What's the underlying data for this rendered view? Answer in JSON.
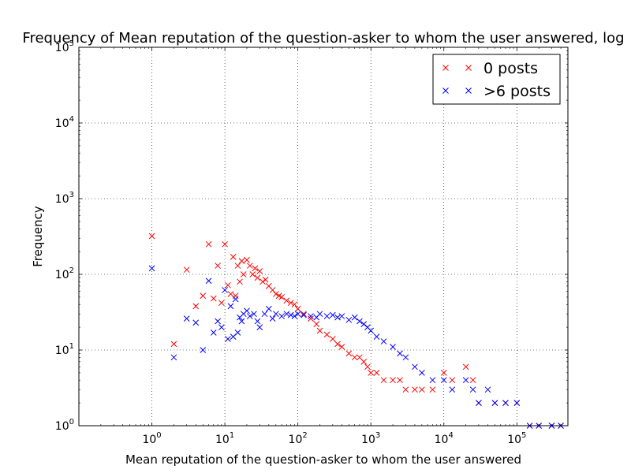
{
  "chart_data": {
    "type": "scatter",
    "title": "Frequency of Mean reputation of the question-asker to whom the user answered, log",
    "xlabel": "Mean reputation of the question-asker to whom the user answered",
    "ylabel": "Frequency",
    "xscale": "log",
    "yscale": "log",
    "xlim": [
      0.1,
      500000
    ],
    "ylim": [
      1,
      100000
    ],
    "x_ticks": [
      {
        "base": "10",
        "exp": "0",
        "value": 1
      },
      {
        "base": "10",
        "exp": "1",
        "value": 10
      },
      {
        "base": "10",
        "exp": "2",
        "value": 100
      },
      {
        "base": "10",
        "exp": "3",
        "value": 1000
      },
      {
        "base": "10",
        "exp": "4",
        "value": 10000
      },
      {
        "base": "10",
        "exp": "5",
        "value": 100000
      }
    ],
    "y_ticks": [
      {
        "base": "10",
        "exp": "0",
        "value": 1
      },
      {
        "base": "10",
        "exp": "1",
        "value": 10
      },
      {
        "base": "10",
        "exp": "2",
        "value": 100
      },
      {
        "base": "10",
        "exp": "3",
        "value": 1000
      },
      {
        "base": "10",
        "exp": "4",
        "value": 10000
      },
      {
        "base": "10",
        "exp": "5",
        "value": 100000
      }
    ],
    "grid": true,
    "legend_position": "top-right",
    "series": [
      {
        "name": "0 posts",
        "color": "#ff0000",
        "marker": "x",
        "x": [
          1,
          2,
          3,
          4,
          5,
          6,
          7,
          8,
          9,
          10,
          11,
          12,
          13,
          14,
          15,
          16,
          17,
          18,
          20,
          22,
          24,
          26,
          28,
          30,
          33,
          36,
          40,
          45,
          50,
          55,
          60,
          70,
          80,
          90,
          100,
          120,
          150,
          180,
          200,
          250,
          300,
          350,
          400,
          500,
          600,
          700,
          800,
          900,
          1000,
          1200,
          1500,
          2000,
          2500,
          3000,
          4000,
          5000,
          7000,
          10000,
          13000,
          20000,
          25000,
          30000,
          50000,
          70000,
          100000,
          150000,
          200000,
          300000,
          400000
        ],
        "y": [
          320,
          12,
          115,
          38,
          52,
          250,
          48,
          130,
          42,
          250,
          72,
          55,
          170,
          52,
          130,
          80,
          150,
          100,
          155,
          130,
          100,
          120,
          90,
          110,
          80,
          85,
          70,
          62,
          55,
          52,
          50,
          45,
          42,
          40,
          35,
          30,
          26,
          22,
          18,
          16,
          14,
          12,
          11,
          9,
          8,
          8,
          7,
          6,
          5,
          5,
          4,
          4,
          4,
          3,
          3,
          3,
          3,
          5,
          4,
          6,
          4,
          2,
          2,
          2,
          2,
          1,
          1,
          1,
          1
        ]
      },
      {
        "name": ">6 posts",
        "color": "#0000ff",
        "marker": "x",
        "x": [
          1,
          2,
          3,
          4,
          5,
          6,
          7,
          8,
          9,
          10,
          11,
          12,
          13,
          14,
          15,
          16,
          17,
          18,
          20,
          22,
          25,
          28,
          30,
          35,
          40,
          45,
          50,
          60,
          70,
          80,
          90,
          100,
          120,
          150,
          180,
          200,
          250,
          300,
          350,
          400,
          500,
          600,
          700,
          800,
          900,
          1000,
          1200,
          1500,
          2000,
          2500,
          3000,
          4000,
          5000,
          7000,
          10000,
          13000,
          20000,
          25000,
          30000,
          40000,
          50000,
          70000,
          100000,
          150000,
          200000,
          300000,
          400000
        ],
        "y": [
          120,
          8,
          26,
          23,
          10,
          82,
          17,
          24,
          20,
          62,
          14,
          38,
          15,
          47,
          17,
          27,
          24,
          30,
          33,
          28,
          30,
          24,
          20,
          30,
          35,
          26,
          30,
          28,
          30,
          29,
          28,
          30,
          29,
          28,
          27,
          30,
          28,
          29,
          27,
          28,
          25,
          27,
          24,
          22,
          20,
          18,
          15,
          13,
          11,
          9,
          8,
          6,
          5,
          4,
          4,
          3,
          4,
          3,
          2,
          3,
          2,
          2,
          2,
          1,
          1,
          1,
          1
        ]
      }
    ]
  }
}
